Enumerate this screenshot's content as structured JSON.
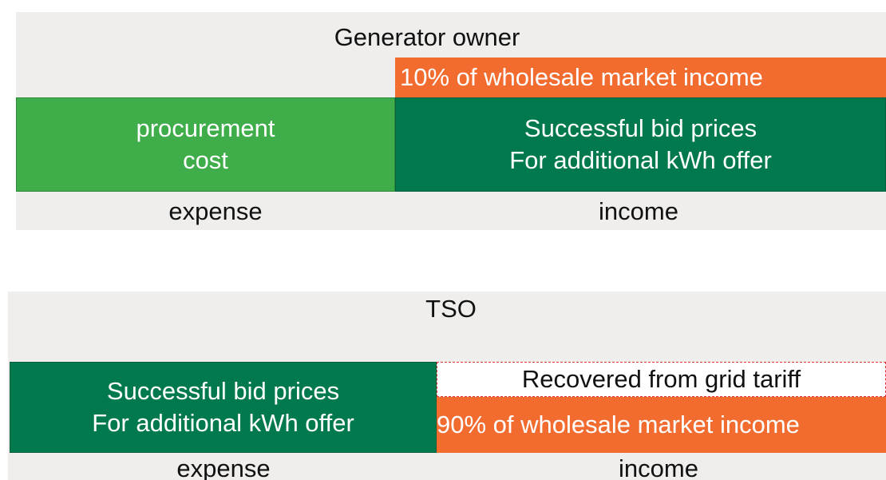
{
  "panels": [
    {
      "title": "Generator owner",
      "top_bar": "10% of wholesale market income",
      "left_box": [
        "procurement",
        "cost"
      ],
      "right_box": [
        "Successful bid prices",
        "For additional kWh offer"
      ],
      "left_label": "expense",
      "right_label": "income"
    },
    {
      "title": "TSO",
      "left_box": [
        "Successful bid prices",
        "For additional kWh offer"
      ],
      "right_top": "Recovered from grid tariff",
      "right_bottom": "90% of wholesale market income",
      "left_label": "expense",
      "right_label": "income"
    }
  ]
}
